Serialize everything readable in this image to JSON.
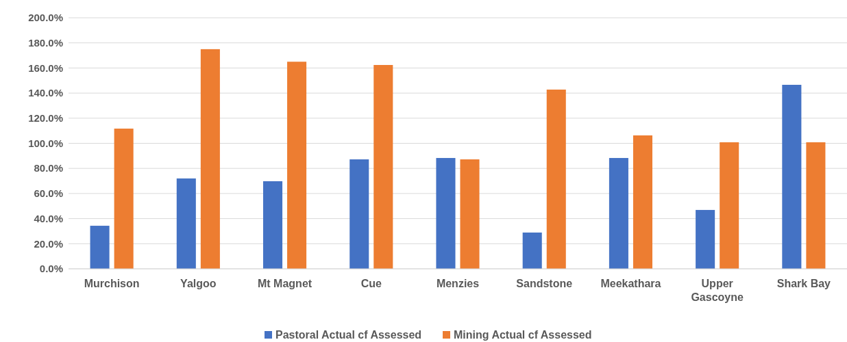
{
  "chart_data": {
    "type": "bar",
    "categories": [
      "Murchison",
      "Yalgoo",
      "Mt Magnet",
      "Cue",
      "Menzies",
      "Sandstone",
      "Meekathara",
      "Upper Gascoyne",
      "Shark Bay"
    ],
    "series": [
      {
        "name": "Pastoral Actual cf Assessed",
        "color": "#4472c4",
        "values": [
          34.3,
          72,
          69.8,
          87.2,
          88.3,
          28.9,
          88.3,
          46.9,
          146.6
        ]
      },
      {
        "name": "Mining Actual cf Assessed",
        "color": "#ed7d31",
        "values": [
          111.7,
          175,
          165,
          162.4,
          87.2,
          142.8,
          106.3,
          100.8,
          100.8
        ]
      }
    ],
    "ylim": [
      0,
      200
    ],
    "yticks": [
      {
        "value": 0,
        "label": "0.0%"
      },
      {
        "value": 20,
        "label": "20.0%"
      },
      {
        "value": 40,
        "label": "40.0%"
      },
      {
        "value": 60,
        "label": "60.0%"
      },
      {
        "value": 80,
        "label": "80.0%"
      },
      {
        "value": 100,
        "label": "100.0%"
      },
      {
        "value": 120,
        "label": "120.0%"
      },
      {
        "value": 140,
        "label": "140.0%"
      },
      {
        "value": 160,
        "label": "160.0%"
      },
      {
        "value": 180,
        "label": "180.0%"
      },
      {
        "value": 200,
        "label": "200.0%"
      }
    ],
    "grid": "y",
    "legend": "bottom"
  }
}
